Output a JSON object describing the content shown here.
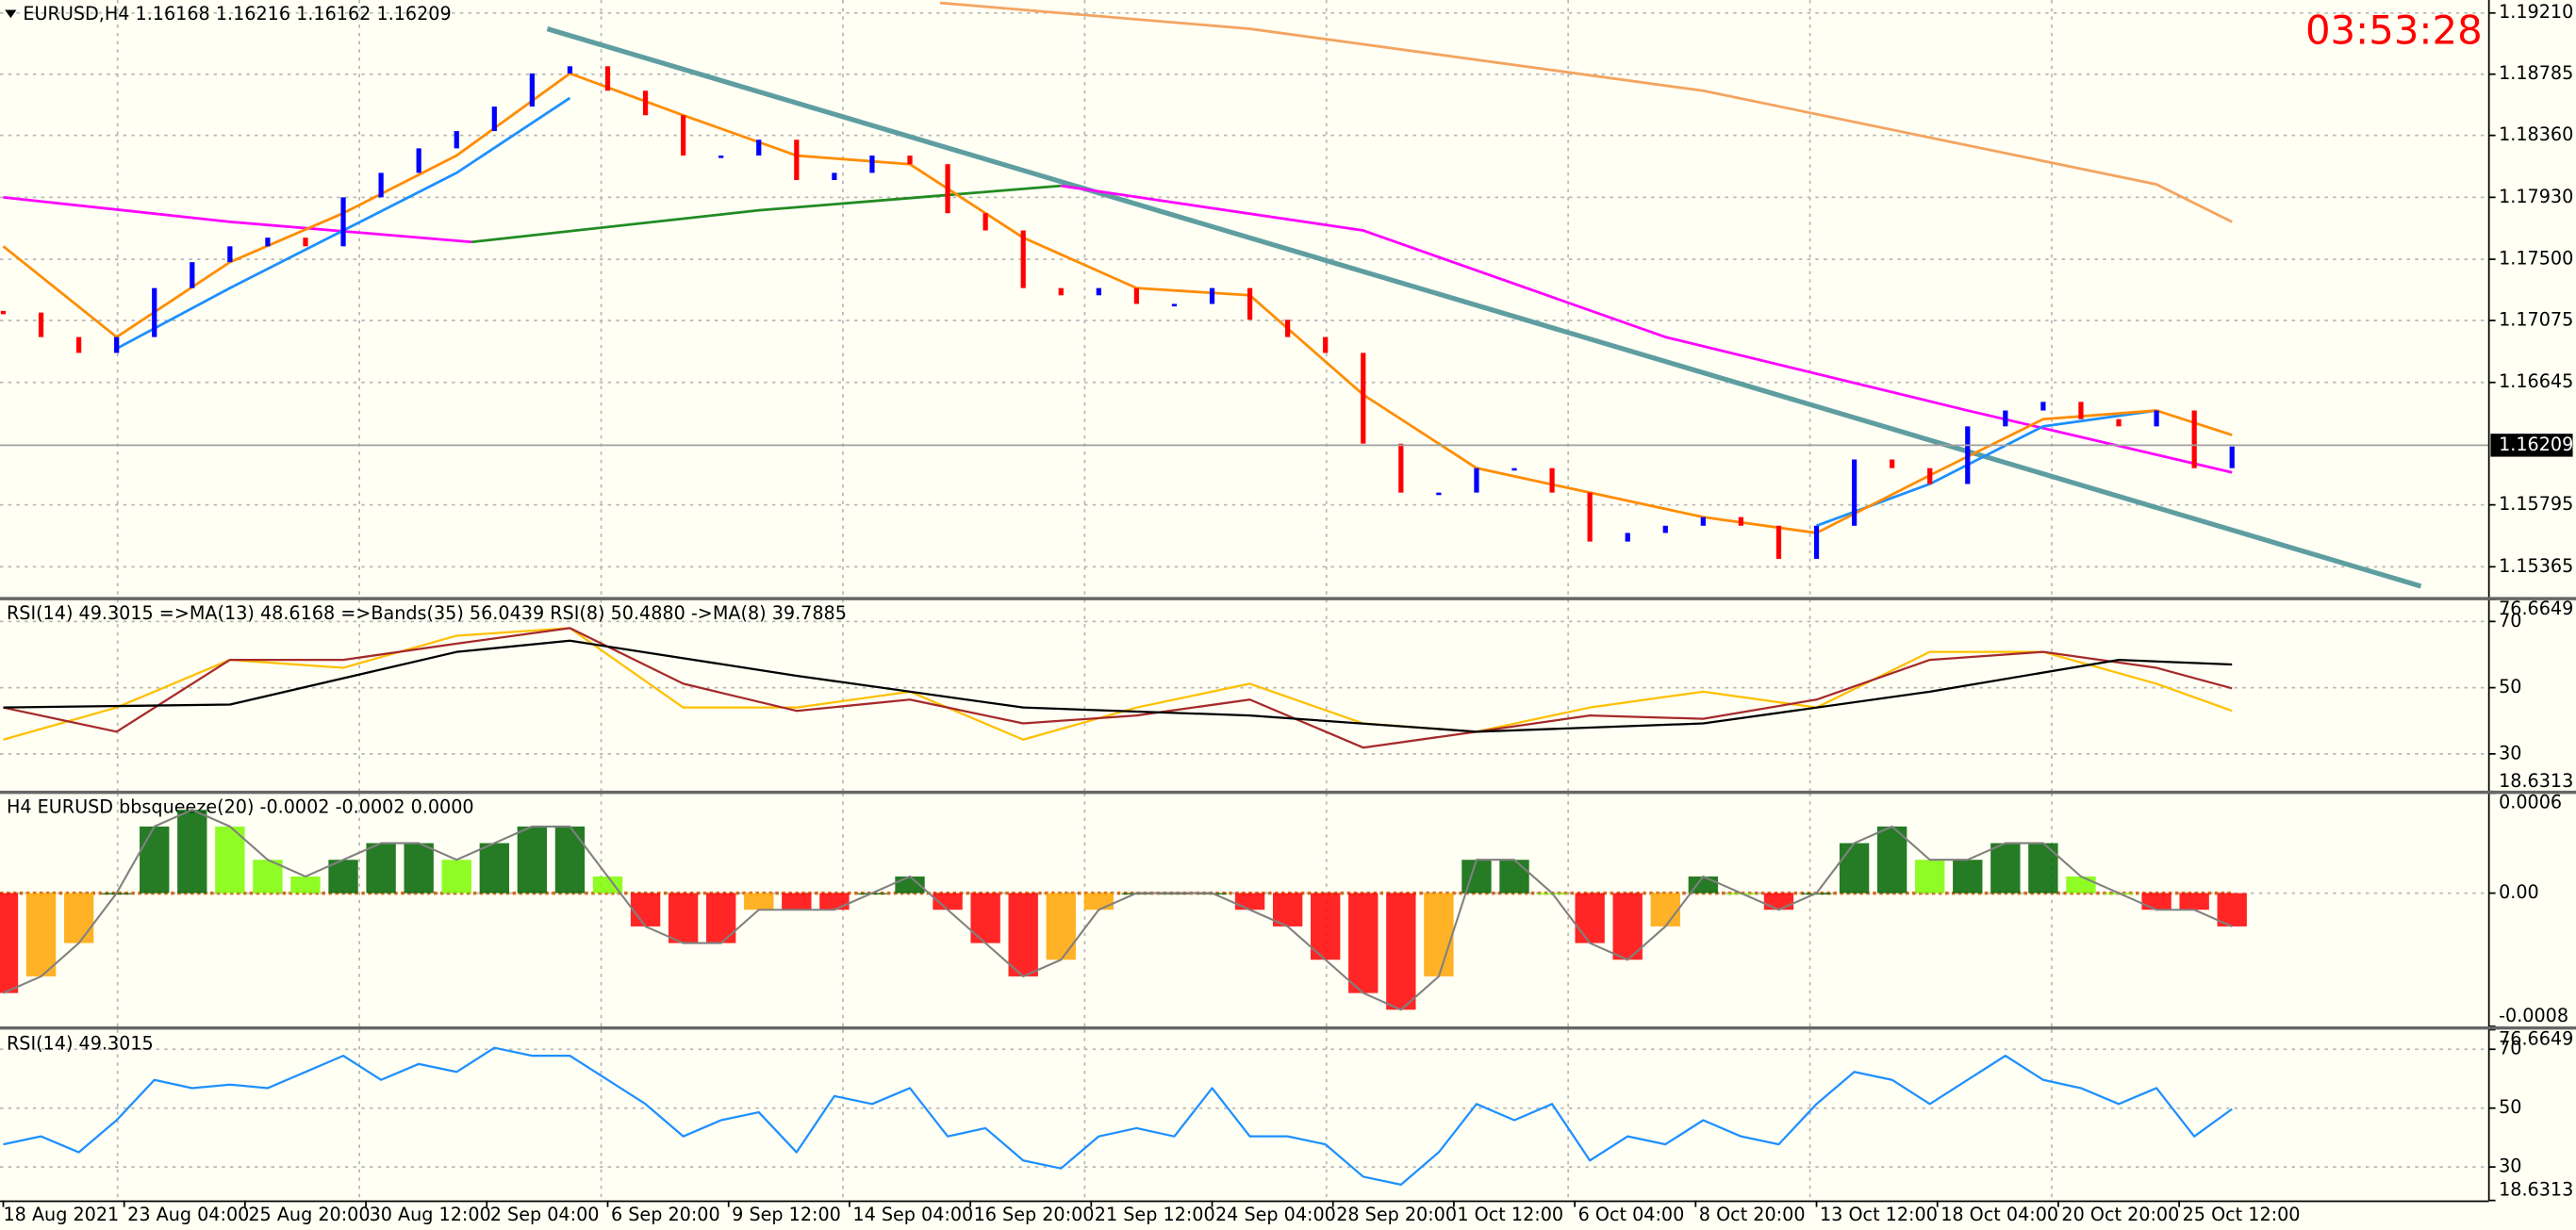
{
  "chart_data": [
    {
      "type": "price",
      "title": "EURUSD,H4  1.16168 1.16216 1.16162 1.16209",
      "clock": "03:53:28",
      "xlim": [
        0,
        329
      ],
      "ylim": [
        1.1515,
        1.193
      ],
      "yticks": [
        {
          "value": 1.1921,
          "label": "1.19210"
        },
        1.18785,
        {
          "value": 1.1836,
          "label": "1.18360"
        },
        {
          "value": 1.1793,
          "label": "1.17930"
        },
        {
          "value": 1.175,
          "label": "1.17500"
        },
        1.17075,
        1.16645,
        1.15795,
        1.15365
      ],
      "current_price": 1.16209,
      "up_color": "#0000ff",
      "down_color": "#ff0000",
      "x": [
        0,
        5,
        10,
        15,
        20,
        25,
        30,
        35,
        40,
        45,
        50,
        55,
        60,
        65,
        70,
        75,
        80,
        85,
        90,
        95,
        100,
        105,
        110,
        115,
        120,
        125,
        130,
        135,
        140,
        145,
        150,
        155,
        160,
        165,
        170,
        175,
        180,
        185,
        190,
        195,
        200,
        205,
        210,
        215,
        220,
        225,
        230,
        235,
        240,
        245,
        250,
        255,
        260,
        265,
        270,
        275,
        280,
        285,
        290,
        295
      ],
      "values": [
        1.1713,
        1.1696,
        1.1685,
        1.1696,
        1.173,
        1.1748,
        1.1759,
        1.1765,
        1.1759,
        1.1793,
        1.181,
        1.1827,
        1.1839,
        1.1856,
        1.1879,
        1.1884,
        1.1867,
        1.185,
        1.1822,
        1.1822,
        1.1833,
        1.1805,
        1.181,
        1.1822,
        1.1816,
        1.1782,
        1.177,
        1.173,
        1.1725,
        1.173,
        1.1719,
        1.1719,
        1.173,
        1.1708,
        1.1696,
        1.1685,
        1.1622,
        1.1588,
        1.1588,
        1.1605,
        1.1605,
        1.1588,
        1.1554,
        1.156,
        1.1565,
        1.1571,
        1.1565,
        1.1542,
        1.1565,
        1.1611,
        1.1605,
        1.1594,
        1.1634,
        1.1645,
        1.1651,
        1.1639,
        1.1634,
        1.1645,
        1.1605,
        1.162
      ],
      "series": [
        {
          "color": "#f4a460",
          "x": [
            124,
            165,
            225,
            285,
            295
          ],
          "values": [
            1.1928,
            1.191,
            1.1867,
            1.1802,
            1.1776
          ]
        },
        {
          "color": "#ff00ff",
          "x": [
            0,
            30,
            62,
            100,
            140,
            180,
            220,
            260,
            295
          ],
          "values": [
            1.1793,
            1.1776,
            1.1762,
            null,
            1.1801,
            1.177,
            1.1696,
            1.1645,
            1.1602
          ]
        },
        {
          "color": "#228b22",
          "x": [
            62,
            100,
            140
          ],
          "values": [
            1.1762,
            1.1784,
            1.1801
          ]
        },
        {
          "color": "#1e90ff",
          "x": [
            15,
            30,
            45,
            60,
            75,
            160,
            240,
            255,
            270,
            285
          ],
          "values": [
            1.1688,
            1.173,
            1.177,
            1.181,
            1.1862,
            null,
            1.1565,
            1.1594,
            1.1634,
            1.1645
          ]
        },
        {
          "color": "#ff8c00",
          "x": [
            0,
            15,
            30,
            45,
            60,
            75,
            90,
            105,
            120,
            135,
            150,
            165,
            180,
            195,
            210,
            225,
            240,
            255,
            270,
            285,
            295
          ],
          "values": [
            1.1759,
            1.1696,
            1.1748,
            1.1782,
            1.1822,
            1.1879,
            1.185,
            1.1822,
            1.1816,
            1.1765,
            1.173,
            1.1725,
            1.1656,
            1.1605,
            1.1588,
            1.1571,
            1.156,
            1.16,
            1.1639,
            1.1645,
            1.1628
          ]
        }
      ],
      "trendline": {
        "color": "#5f9ea0",
        "x": [
          72,
          320
        ],
        "values": [
          1.191,
          1.1523
        ]
      }
    },
    {
      "type": "line",
      "title": "RSI(14) 49.3015  =>MA(13) 48.6168  =>Bands(35) 56.0439  RSI(8) 50.4880  ->MA(8) 39.7885",
      "xlim": [
        0,
        329
      ],
      "ylim": [
        18.6313,
        76.6649
      ],
      "yticks": [
        76.6649,
        70,
        50,
        30,
        18.6313
      ],
      "series": [
        {
          "color": "#ffc000",
          "x": [
            0,
            15,
            30,
            45,
            60,
            75,
            90,
            105,
            120,
            135,
            150,
            165,
            180,
            195,
            210,
            225,
            240,
            255,
            270,
            285,
            295
          ],
          "values": [
            34.3,
            44,
            58.4,
            56,
            65.7,
            68,
            44,
            44,
            48.8,
            34.3,
            44,
            51.2,
            39.2,
            36.7,
            44,
            48.8,
            44,
            60.8,
            60.8,
            51.2,
            43
          ]
        },
        {
          "color": "#a52a2a",
          "x": [
            0,
            15,
            30,
            45,
            60,
            75,
            90,
            105,
            120,
            135,
            150,
            165,
            180,
            195,
            210,
            225,
            240,
            255,
            270,
            285,
            295
          ],
          "values": [
            44,
            36.7,
            58.4,
            58.4,
            63.3,
            68,
            51.2,
            43,
            46.4,
            39.2,
            41.6,
            46.4,
            31.9,
            36.7,
            41.6,
            40.6,
            46.4,
            58.4,
            60.8,
            56,
            49.8
          ]
        },
        {
          "color": "#000000",
          "x": [
            0,
            30,
            60,
            75,
            105,
            135,
            165,
            195,
            225,
            255,
            280,
            295
          ],
          "values": [
            44,
            44.9,
            60.8,
            64.2,
            53.6,
            44,
            41.6,
            36.7,
            39.2,
            48.8,
            58.4,
            57
          ]
        }
      ]
    },
    {
      "type": "histogram",
      "title": "H4 EURUSD bbsqueeze(20) -0.0002 -0.0002 0.0000",
      "xlim": [
        0,
        329
      ],
      "ylim": [
        -0.0008,
        0.0006
      ],
      "yticks": [
        0.0006,
        {
          "value": 0,
          "label": "0.00"
        },
        -0.0008
      ],
      "colors": {
        "pos_rising": "#006400",
        "pos_falling": "#7cfc00",
        "neg_falling": "#ff0000",
        "neg_rising": "#ffa500"
      },
      "outline_color": "#808080",
      "zero_color": "#d2691e",
      "x": [
        0,
        5,
        10,
        15,
        20,
        25,
        30,
        35,
        40,
        45,
        50,
        55,
        60,
        65,
        70,
        75,
        80,
        85,
        90,
        95,
        100,
        105,
        110,
        115,
        120,
        125,
        130,
        135,
        140,
        145,
        150,
        155,
        160,
        165,
        170,
        175,
        180,
        185,
        190,
        195,
        200,
        205,
        210,
        215,
        220,
        225,
        230,
        235,
        240,
        245,
        250,
        255,
        260,
        265,
        270,
        275,
        280,
        285,
        290,
        295
      ],
      "values": [
        -0.0006,
        -0.0005,
        -0.0003,
        0,
        0.0004,
        0.0005,
        0.0004,
        0.0002,
        0.0001,
        0.0002,
        0.0003,
        0.0003,
        0.0002,
        0.0003,
        0.0004,
        0.0004,
        0.0001,
        -0.0002,
        -0.0003,
        -0.0003,
        -0.0001,
        -0.0001,
        -0.0001,
        0,
        0.0001,
        -0.0001,
        -0.0003,
        -0.0005,
        -0.0004,
        -0.0001,
        0,
        0,
        0,
        -0.0001,
        -0.0002,
        -0.0004,
        -0.0006,
        -0.0007,
        -0.0005,
        0.0002,
        0.0002,
        0,
        -0.0003,
        -0.0004,
        -0.0002,
        0.0001,
        0,
        -0.0001,
        0,
        0.0003,
        0.0004,
        0.0002,
        0.0002,
        0.0003,
        0.0003,
        0.0001,
        0,
        -0.0001,
        -0.0001,
        -0.0002
      ]
    },
    {
      "type": "line",
      "title": "RSI(14) 49.3015",
      "xlim": [
        0,
        329
      ],
      "ylim": [
        18.6313,
        76.6649
      ],
      "yticks": [
        76.6649,
        70,
        50,
        30,
        18.6313
      ],
      "xticks": [
        {
          "value": 0,
          "label": "18 Aug 2021"
        },
        {
          "value": 16,
          "label": "23 Aug 04:00"
        },
        {
          "value": 32,
          "label": "25 Aug 20:00"
        },
        {
          "value": 48,
          "label": "30 Aug 12:00"
        },
        {
          "value": 64,
          "label": "2 Sep 04:00"
        },
        {
          "value": 80,
          "label": "6 Sep 20:00"
        },
        {
          "value": 96,
          "label": "9 Sep 12:00"
        },
        {
          "value": 112,
          "label": "14 Sep 04:00"
        },
        {
          "value": 128,
          "label": "16 Sep 20:00"
        },
        {
          "value": 144,
          "label": "21 Sep 12:00"
        },
        {
          "value": 160,
          "label": "24 Sep 04:00"
        },
        {
          "value": 176,
          "label": "28 Sep 20:00"
        },
        {
          "value": 192,
          "label": "1 Oct 12:00"
        },
        {
          "value": 208,
          "label": "6 Oct 04:00"
        },
        {
          "value": 224,
          "label": "8 Oct 20:00"
        },
        {
          "value": 240,
          "label": "13 Oct 12:00"
        },
        {
          "value": 256,
          "label": "18 Oct 04:00"
        },
        {
          "value": 272,
          "label": "20 Oct 20:00"
        },
        {
          "value": 288,
          "label": "25 Oct 12:00"
        }
      ],
      "series": [
        {
          "color": "#1e90ff",
          "x": [
            0,
            5,
            10,
            15,
            20,
            25,
            30,
            35,
            40,
            45,
            50,
            55,
            60,
            65,
            70,
            75,
            80,
            85,
            90,
            95,
            100,
            105,
            110,
            115,
            120,
            125,
            130,
            135,
            140,
            145,
            150,
            155,
            160,
            165,
            170,
            175,
            180,
            185,
            190,
            195,
            200,
            205,
            210,
            215,
            220,
            225,
            230,
            235,
            240,
            245,
            250,
            255,
            260,
            265,
            270,
            275,
            280,
            285,
            290,
            295
          ],
          "values": [
            37.7,
            40.4,
            35,
            45.9,
            59.6,
            56.8,
            58,
            56.8,
            62.3,
            67.8,
            59.6,
            65,
            62.3,
            70.5,
            67.8,
            67.8,
            59.6,
            51.4,
            40.4,
            45.9,
            48.6,
            35,
            54.1,
            51.4,
            56.8,
            40.4,
            43.2,
            32.2,
            29.5,
            40.4,
            43.2,
            40.4,
            56.8,
            40.4,
            40.4,
            37.7,
            26.7,
            24,
            35,
            51.4,
            45.9,
            51.4,
            32.2,
            40.4,
            37.7,
            45.9,
            40.4,
            37.7,
            51.4,
            62.3,
            59.6,
            51.4,
            59.6,
            67.8,
            59.6,
            56.8,
            51.4,
            56.8,
            40.4,
            49.7
          ]
        }
      ]
    }
  ]
}
